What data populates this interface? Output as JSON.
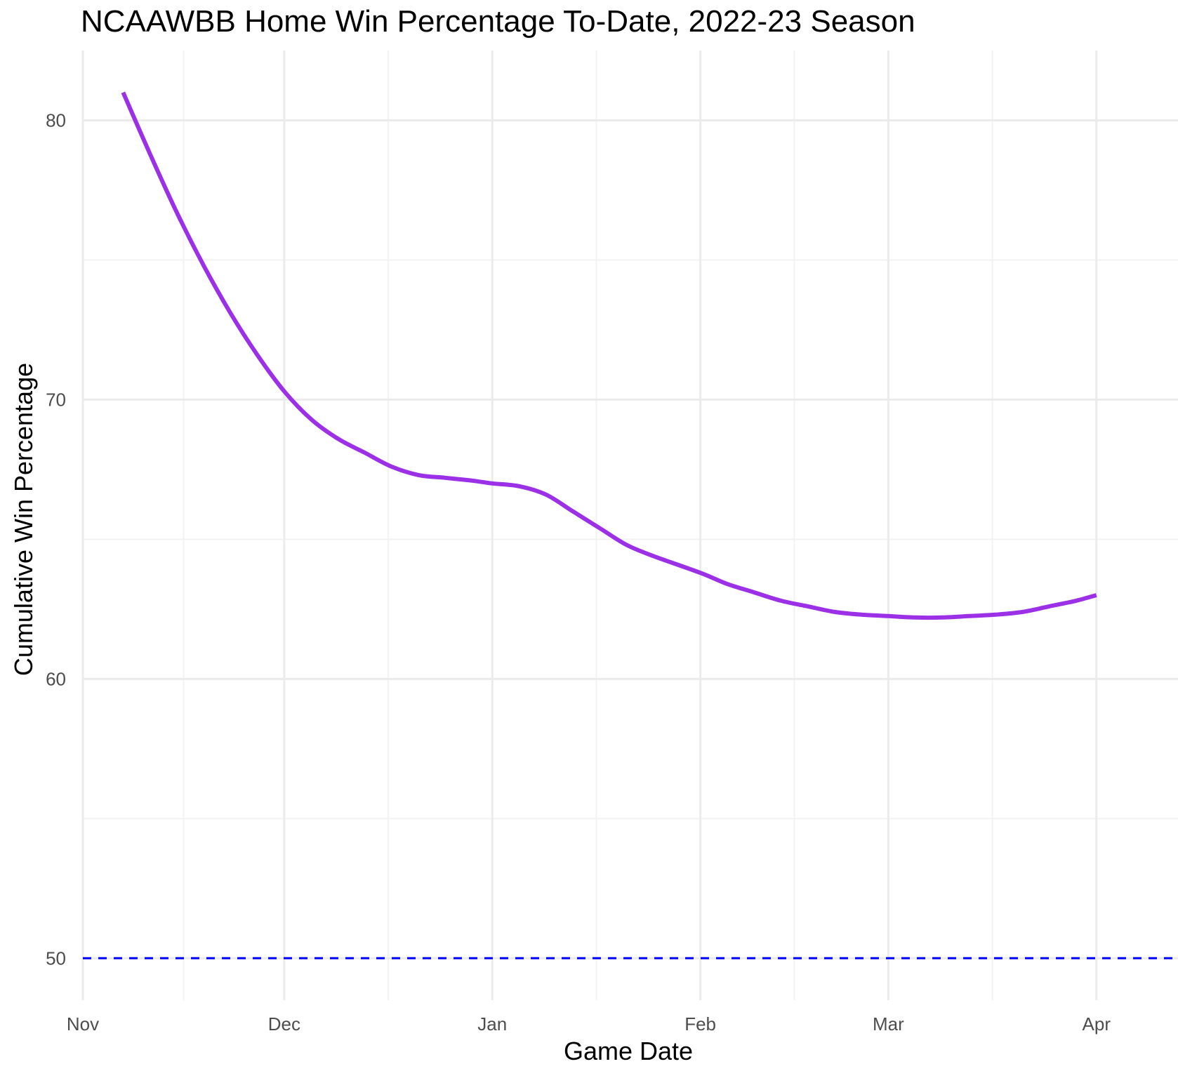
{
  "chart_data": {
    "type": "line",
    "title": "NCAAWBB Home Win Percentage To-Date, 2022-23 Season",
    "xlabel": "Game Date",
    "ylabel": "Cumulative Win Percentage",
    "x_ticks": [
      {
        "date": "2022-11-01",
        "label": "Nov"
      },
      {
        "date": "2022-12-01",
        "label": "Dec"
      },
      {
        "date": "2023-01-01",
        "label": "Jan"
      },
      {
        "date": "2023-02-01",
        "label": "Feb"
      },
      {
        "date": "2023-03-01",
        "label": "Mar"
      },
      {
        "date": "2023-04-01",
        "label": "Apr"
      }
    ],
    "xlim": [
      "2022-11-01",
      "2023-04-05"
    ],
    "y_ticks": [
      50,
      60,
      70,
      80
    ],
    "ylim": [
      48.5,
      82.5
    ],
    "grid": true,
    "series": [
      {
        "color": "#9b30e6",
        "points": [
          {
            "x": "2022-11-07",
            "y": 81.0
          },
          {
            "x": "2022-11-11",
            "y": 78.8
          },
          {
            "x": "2022-11-15",
            "y": 76.7
          },
          {
            "x": "2022-11-19",
            "y": 74.8
          },
          {
            "x": "2022-11-23",
            "y": 73.1
          },
          {
            "x": "2022-11-27",
            "y": 71.6
          },
          {
            "x": "2022-12-01",
            "y": 70.3
          },
          {
            "x": "2022-12-05",
            "y": 69.3
          },
          {
            "x": "2022-12-09",
            "y": 68.6
          },
          {
            "x": "2022-12-13",
            "y": 68.1
          },
          {
            "x": "2022-12-17",
            "y": 67.6
          },
          {
            "x": "2022-12-21",
            "y": 67.3
          },
          {
            "x": "2022-12-25",
            "y": 67.2
          },
          {
            "x": "2022-12-29",
            "y": 67.1
          },
          {
            "x": "2023-01-01",
            "y": 67.0
          },
          {
            "x": "2023-01-05",
            "y": 66.9
          },
          {
            "x": "2023-01-09",
            "y": 66.6
          },
          {
            "x": "2023-01-13",
            "y": 66.0
          },
          {
            "x": "2023-01-17",
            "y": 65.4
          },
          {
            "x": "2023-01-21",
            "y": 64.8
          },
          {
            "x": "2023-01-25",
            "y": 64.4
          },
          {
            "x": "2023-02-01",
            "y": 63.8
          },
          {
            "x": "2023-02-05",
            "y": 63.4
          },
          {
            "x": "2023-02-09",
            "y": 63.1
          },
          {
            "x": "2023-02-13",
            "y": 62.8
          },
          {
            "x": "2023-02-17",
            "y": 62.6
          },
          {
            "x": "2023-02-21",
            "y": 62.4
          },
          {
            "x": "2023-02-25",
            "y": 62.3
          },
          {
            "x": "2023-03-01",
            "y": 62.25
          },
          {
            "x": "2023-03-05",
            "y": 62.2
          },
          {
            "x": "2023-03-09",
            "y": 62.2
          },
          {
            "x": "2023-03-13",
            "y": 62.25
          },
          {
            "x": "2023-03-17",
            "y": 62.3
          },
          {
            "x": "2023-03-21",
            "y": 62.4
          },
          {
            "x": "2023-03-25",
            "y": 62.6
          },
          {
            "x": "2023-03-29",
            "y": 62.8
          },
          {
            "x": "2023-04-01",
            "y": 63.0
          }
        ]
      }
    ],
    "reference_line": {
      "y": 50,
      "style": "dashed",
      "color": "#0000ff"
    }
  }
}
